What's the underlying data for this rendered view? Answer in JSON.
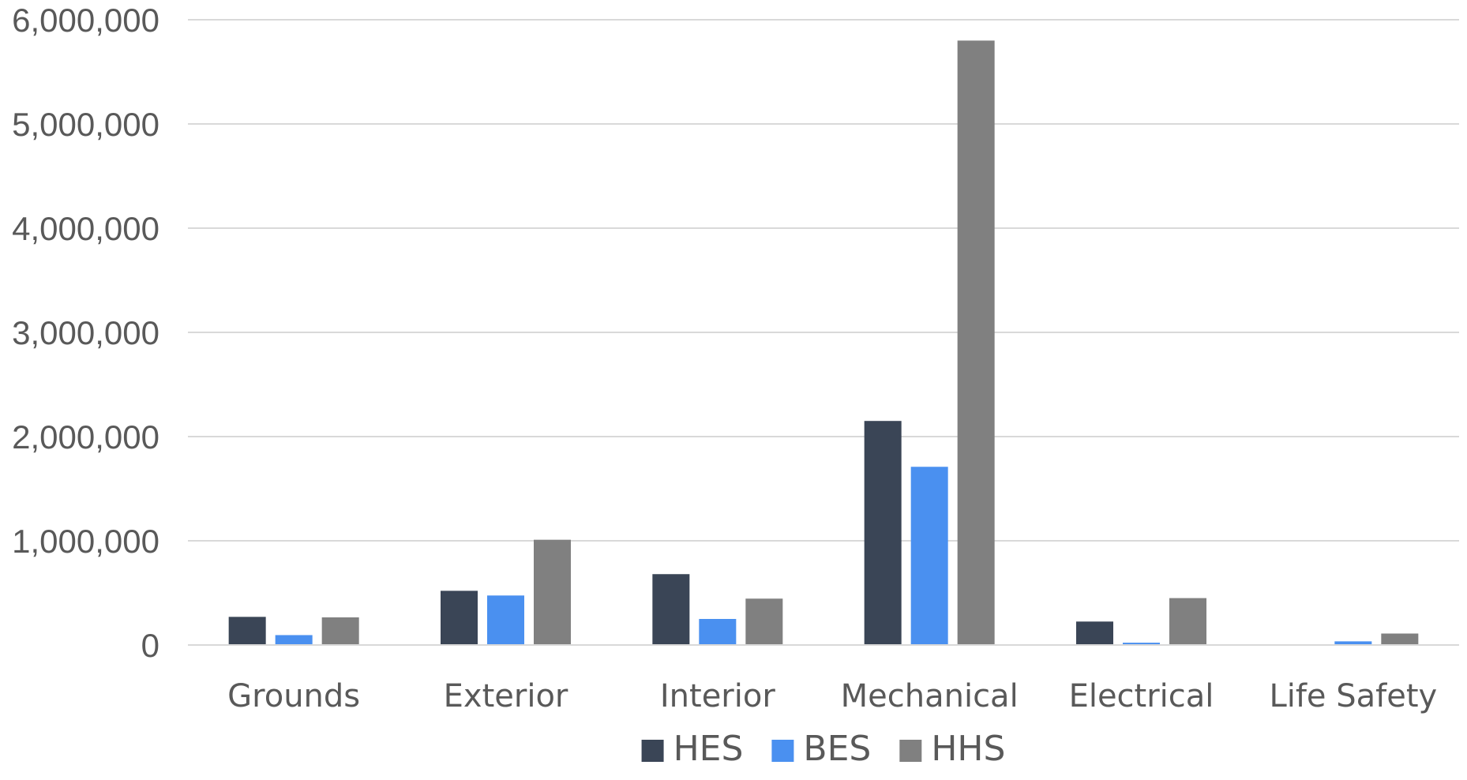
{
  "chart_data": {
    "type": "bar",
    "categories": [
      "Grounds",
      "Exterior",
      "Interior",
      "Mechanical",
      "Electrical",
      "Life Safety"
    ],
    "series": [
      {
        "name": "HES",
        "color": "#3A4556",
        "values": [
          270000,
          520000,
          680000,
          2150000,
          225000,
          0
        ]
      },
      {
        "name": "BES",
        "color": "#4A90F0",
        "values": [
          95000,
          475000,
          250000,
          1710000,
          22000,
          35000
        ]
      },
      {
        "name": "HHS",
        "color": "#808080",
        "values": [
          265000,
          1010000,
          445000,
          5800000,
          450000,
          110000
        ]
      }
    ],
    "y_ticks": [
      "0",
      "1,000,000",
      "2,000,000",
      "3,000,000",
      "4,000,000",
      "5,000,000",
      "6,000,000"
    ],
    "ylim": [
      0,
      6000000
    ],
    "grid": true,
    "legend_position": "bottom"
  }
}
